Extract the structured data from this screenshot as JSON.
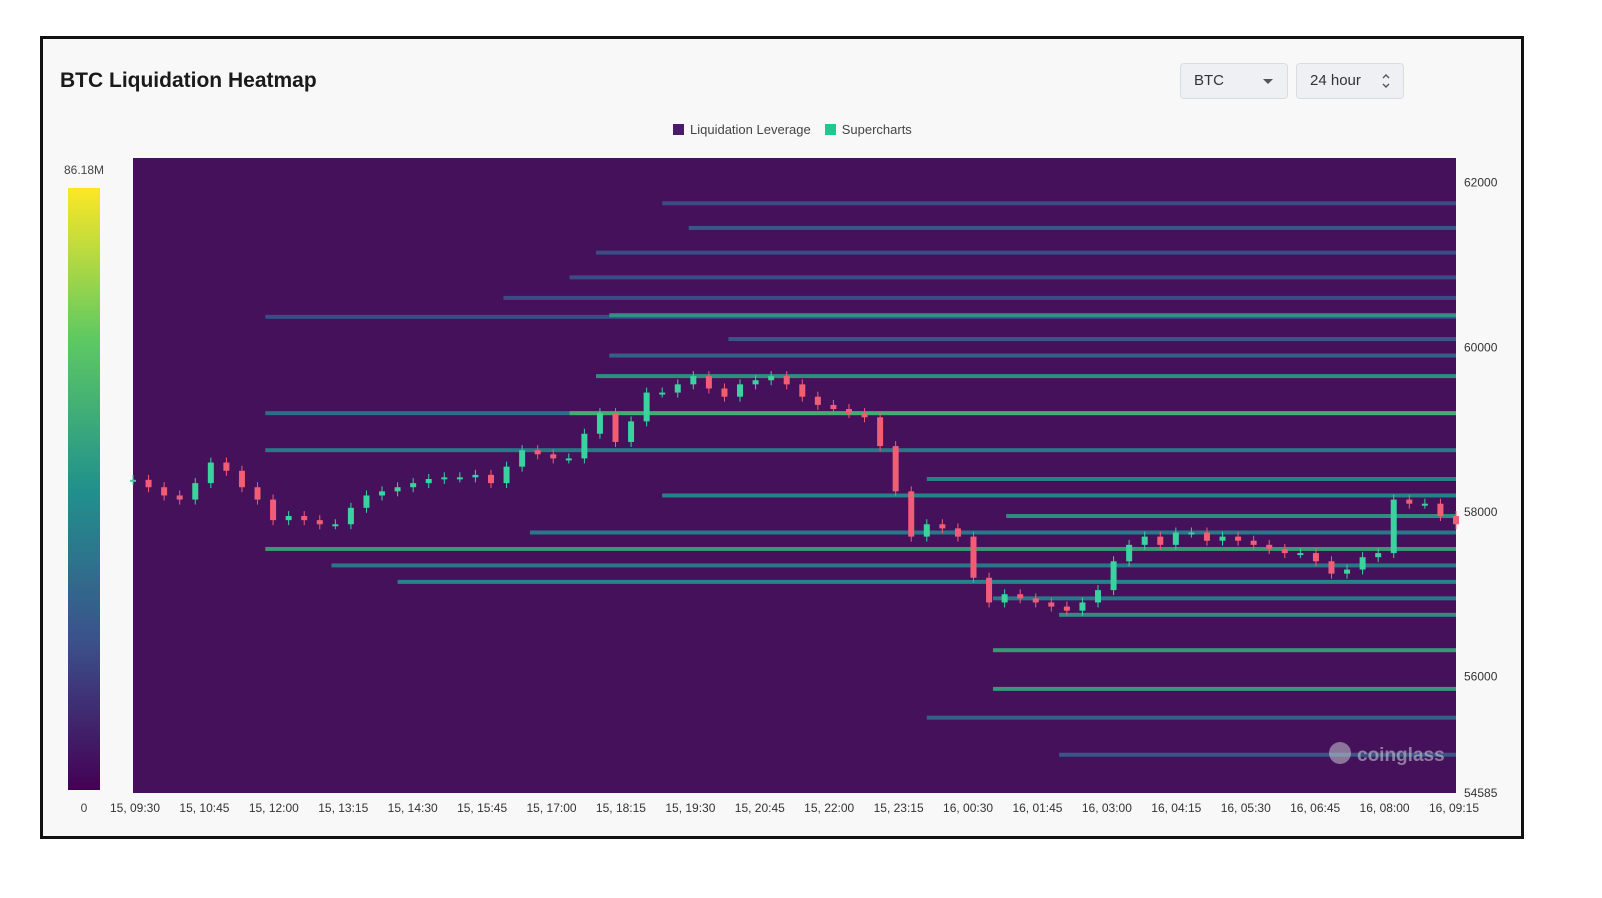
{
  "header": {
    "title": "BTC Liquidation Heatmap",
    "symbol_select": "BTC",
    "range_select": "24 hour"
  },
  "legend": [
    {
      "label": "Liquidation Leverage",
      "color": "#4a1a6b"
    },
    {
      "label": "Supercharts",
      "color": "#1fc98b"
    }
  ],
  "colorbar": {
    "max_label": "86.18M",
    "min_label": "0"
  },
  "watermark": "coinglass",
  "chart_data": {
    "type": "heatmap",
    "title": "BTC Liquidation Heatmap",
    "x_ticks": [
      "15, 09:30",
      "15, 10:45",
      "15, 12:00",
      "15, 13:15",
      "15, 14:30",
      "15, 15:45",
      "15, 17:00",
      "15, 18:15",
      "15, 19:30",
      "15, 20:45",
      "15, 22:00",
      "15, 23:15",
      "16, 00:30",
      "16, 01:45",
      "16, 03:00",
      "16, 04:15",
      "16, 05:30",
      "16, 06:45",
      "16, 08:00",
      "16, 09:15"
    ],
    "y_ticks": [
      62000,
      60000,
      58000,
      56000,
      54585
    ],
    "ylim": [
      54585,
      62300
    ],
    "colorscale": [
      "#440154",
      "#3b528b",
      "#21918c",
      "#5ec962",
      "#fde725"
    ],
    "value_range": [
      0,
      86.18
    ],
    "value_unit": "M",
    "price_series": [
      [
        0,
        58390
      ],
      [
        1,
        58300
      ],
      [
        2,
        58200
      ],
      [
        3,
        58150
      ],
      [
        4,
        58350
      ],
      [
        5,
        58600
      ],
      [
        6,
        58500
      ],
      [
        7,
        58300
      ],
      [
        8,
        58150
      ],
      [
        9,
        57900
      ],
      [
        10,
        57950
      ],
      [
        11,
        57900
      ],
      [
        12,
        57850
      ],
      [
        13,
        57850
      ],
      [
        14,
        58050
      ],
      [
        15,
        58200
      ],
      [
        16,
        58250
      ],
      [
        17,
        58300
      ],
      [
        18,
        58350
      ],
      [
        19,
        58400
      ],
      [
        20,
        58420
      ],
      [
        21,
        58420
      ],
      [
        22,
        58450
      ],
      [
        23,
        58350
      ],
      [
        24,
        58550
      ],
      [
        25,
        58750
      ],
      [
        26,
        58700
      ],
      [
        27,
        58650
      ],
      [
        28,
        58650
      ],
      [
        29,
        58950
      ],
      [
        30,
        59200
      ],
      [
        31,
        58850
      ],
      [
        32,
        59100
      ],
      [
        33,
        59450
      ],
      [
        34,
        59450
      ],
      [
        35,
        59550
      ],
      [
        36,
        59650
      ],
      [
        37,
        59500
      ],
      [
        38,
        59400
      ],
      [
        39,
        59550
      ],
      [
        40,
        59600
      ],
      [
        41,
        59650
      ],
      [
        42,
        59550
      ],
      [
        43,
        59400
      ],
      [
        44,
        59300
      ],
      [
        45,
        59250
      ],
      [
        46,
        59200
      ],
      [
        47,
        59150
      ],
      [
        48,
        58800
      ],
      [
        49,
        58250
      ],
      [
        50,
        57700
      ],
      [
        51,
        57850
      ],
      [
        52,
        57800
      ],
      [
        53,
        57700
      ],
      [
        54,
        57200
      ],
      [
        55,
        56900
      ],
      [
        56,
        57000
      ],
      [
        57,
        56950
      ],
      [
        58,
        56900
      ],
      [
        59,
        56850
      ],
      [
        60,
        56800
      ],
      [
        61,
        56900
      ],
      [
        62,
        57050
      ],
      [
        63,
        57400
      ],
      [
        64,
        57600
      ],
      [
        65,
        57700
      ],
      [
        66,
        57600
      ],
      [
        67,
        57750
      ],
      [
        68,
        57750
      ],
      [
        69,
        57650
      ],
      [
        70,
        57700
      ],
      [
        71,
        57650
      ],
      [
        72,
        57600
      ],
      [
        73,
        57550
      ],
      [
        74,
        57500
      ],
      [
        75,
        57500
      ],
      [
        76,
        57400
      ],
      [
        77,
        57250
      ],
      [
        78,
        57300
      ],
      [
        79,
        57450
      ],
      [
        80,
        57500
      ],
      [
        81,
        58150
      ],
      [
        82,
        58100
      ],
      [
        83,
        58100
      ],
      [
        84,
        57950
      ],
      [
        85,
        57850
      ]
    ],
    "liquidation_bands": [
      {
        "price": 61750,
        "start": 0.4,
        "level": 0.25
      },
      {
        "price": 61450,
        "start": 0.42,
        "level": 0.3
      },
      {
        "price": 61150,
        "start": 0.35,
        "level": 0.25
      },
      {
        "price": 60850,
        "start": 0.33,
        "level": 0.25
      },
      {
        "price": 60600,
        "start": 0.28,
        "level": 0.25
      },
      {
        "price": 60370,
        "start": 0.1,
        "level": 0.25
      },
      {
        "price": 60390,
        "start": 0.36,
        "level": 0.55
      },
      {
        "price": 60100,
        "start": 0.45,
        "level": 0.3
      },
      {
        "price": 59900,
        "start": 0.36,
        "level": 0.35
      },
      {
        "price": 59650,
        "start": 0.35,
        "level": 0.55
      },
      {
        "price": 59200,
        "start": 0.1,
        "level": 0.4
      },
      {
        "price": 59200,
        "start": 0.33,
        "level": 0.65
      },
      {
        "price": 58750,
        "start": 0.1,
        "level": 0.45
      },
      {
        "price": 58400,
        "start": 0.6,
        "level": 0.5
      },
      {
        "price": 58200,
        "start": 0.4,
        "level": 0.5
      },
      {
        "price": 57950,
        "start": 0.66,
        "level": 0.55
      },
      {
        "price": 57750,
        "start": 0.3,
        "level": 0.45
      },
      {
        "price": 57550,
        "start": 0.1,
        "level": 0.6
      },
      {
        "price": 57350,
        "start": 0.15,
        "level": 0.45
      },
      {
        "price": 57150,
        "start": 0.2,
        "level": 0.5
      },
      {
        "price": 56950,
        "start": 0.65,
        "level": 0.45
      },
      {
        "price": 56750,
        "start": 0.7,
        "level": 0.55
      },
      {
        "price": 56320,
        "start": 0.65,
        "level": 0.6
      },
      {
        "price": 55850,
        "start": 0.65,
        "level": 0.6
      },
      {
        "price": 55500,
        "start": 0.6,
        "level": 0.35
      },
      {
        "price": 55050,
        "start": 0.7,
        "level": 0.3
      }
    ]
  }
}
